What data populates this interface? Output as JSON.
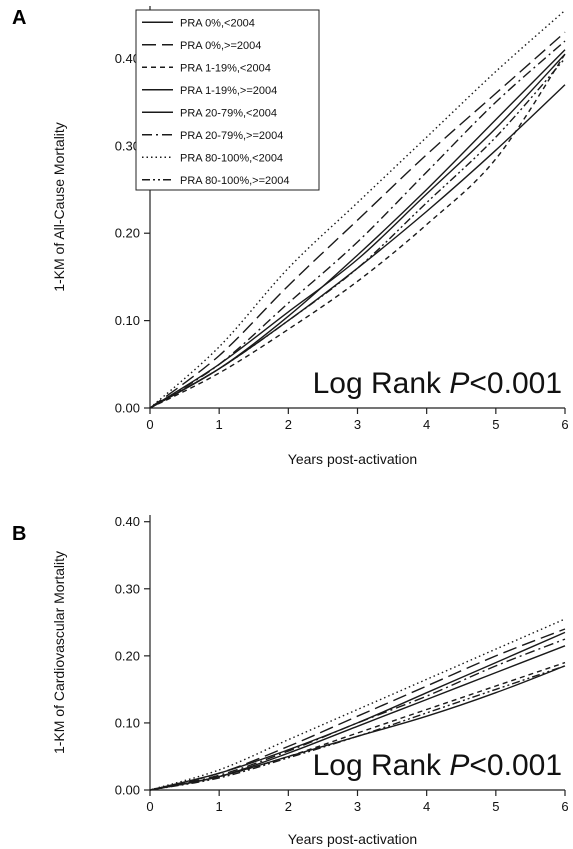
{
  "chart_data": [
    {
      "type": "line",
      "panel_label": "A",
      "title": "",
      "xlabel": "Years post-activation",
      "ylabel": "1-KM of All-Cause Mortality",
      "xlim": [
        0,
        6
      ],
      "ylim": [
        0,
        0.46
      ],
      "xticks": [
        "0",
        "1",
        "2",
        "3",
        "4",
        "5",
        "6"
      ],
      "yticks": [
        "0.00",
        "0.10",
        "0.20",
        "0.30",
        "0.40"
      ],
      "annotation": {
        "prefix": "Log Rank ",
        "italic": "P",
        "suffix": "<0.001"
      },
      "legend_position": "top-left",
      "series": [
        {
          "name": "PRA 0%,<2004",
          "dash": "solid",
          "x": [
            0,
            1,
            2,
            3,
            4,
            5,
            6
          ],
          "y": [
            0,
            0.045,
            0.1,
            0.16,
            0.225,
            0.295,
            0.37
          ]
        },
        {
          "name": "PRA 0%,>=2004",
          "dash": "longdash",
          "x": [
            0,
            1,
            2,
            3,
            4,
            5,
            6
          ],
          "y": [
            0,
            0.06,
            0.14,
            0.215,
            0.29,
            0.36,
            0.43
          ]
        },
        {
          "name": "PRA 1-19%,<2004",
          "dash": "shortdash",
          "x": [
            0,
            1,
            2,
            3,
            4,
            5,
            6
          ],
          "y": [
            0,
            0.04,
            0.09,
            0.145,
            0.21,
            0.285,
            0.405
          ]
        },
        {
          "name": "PRA 1-19%,>=2004",
          "dash": "solid",
          "x": [
            0,
            1,
            2,
            3,
            4,
            5,
            6
          ],
          "y": [
            0,
            0.05,
            0.11,
            0.17,
            0.245,
            0.32,
            0.405
          ]
        },
        {
          "name": "PRA 20-79%,<2004",
          "dash": "solid",
          "x": [
            0,
            1,
            2,
            3,
            4,
            5,
            6
          ],
          "y": [
            0,
            0.045,
            0.105,
            0.175,
            0.25,
            0.33,
            0.41
          ]
        },
        {
          "name": "PRA 20-79%,>=2004",
          "dash": "dashdot",
          "x": [
            0,
            1,
            2,
            3,
            4,
            5,
            6
          ],
          "y": [
            0,
            0.05,
            0.12,
            0.19,
            0.27,
            0.35,
            0.42
          ]
        },
        {
          "name": "PRA 80-100%,<2004",
          "dash": "dotted",
          "x": [
            0,
            1,
            2,
            3,
            4,
            5,
            6
          ],
          "y": [
            0,
            0.07,
            0.16,
            0.235,
            0.31,
            0.385,
            0.455
          ]
        },
        {
          "name": "PRA 80-100%,>=2004",
          "dash": "dashdotdot",
          "x": [
            0,
            1,
            2,
            3,
            4,
            5,
            6
          ],
          "y": [
            0,
            0.045,
            0.1,
            0.16,
            0.235,
            0.31,
            0.4
          ]
        }
      ]
    },
    {
      "type": "line",
      "panel_label": "B",
      "title": "",
      "xlabel": "Years post-activation",
      "ylabel": "1-KM of Cardiovascular Mortality",
      "xlim": [
        0,
        6
      ],
      "ylim": [
        0,
        0.41
      ],
      "xticks": [
        "0",
        "1",
        "2",
        "3",
        "4",
        "5",
        "6"
      ],
      "yticks": [
        "0.00",
        "0.10",
        "0.20",
        "0.30",
        "0.40"
      ],
      "annotation": {
        "prefix": "Log Rank ",
        "italic": "P",
        "suffix": "<0.001"
      },
      "series": [
        {
          "name": "PRA 0%,<2004",
          "dash": "solid",
          "x": [
            0,
            1,
            2,
            3,
            4,
            5,
            6
          ],
          "y": [
            0,
            0.02,
            0.05,
            0.08,
            0.11,
            0.145,
            0.185
          ]
        },
        {
          "name": "PRA 0%,>=2004",
          "dash": "longdash",
          "x": [
            0,
            1,
            2,
            3,
            4,
            5,
            6
          ],
          "y": [
            0,
            0.025,
            0.065,
            0.11,
            0.155,
            0.2,
            0.24
          ]
        },
        {
          "name": "PRA 1-19%,<2004",
          "dash": "shortdash",
          "x": [
            0,
            1,
            2,
            3,
            4,
            5,
            6
          ],
          "y": [
            0,
            0.02,
            0.05,
            0.085,
            0.12,
            0.155,
            0.19
          ]
        },
        {
          "name": "PRA 1-19%,>=2004",
          "dash": "solid",
          "x": [
            0,
            1,
            2,
            3,
            4,
            5,
            6
          ],
          "y": [
            0,
            0.02,
            0.055,
            0.095,
            0.135,
            0.175,
            0.215
          ]
        },
        {
          "name": "PRA 20-79%,<2004",
          "dash": "solid",
          "x": [
            0,
            1,
            2,
            3,
            4,
            5,
            6
          ],
          "y": [
            0,
            0.025,
            0.06,
            0.1,
            0.145,
            0.19,
            0.235
          ]
        },
        {
          "name": "PRA 20-79%,>=2004",
          "dash": "dashdot",
          "x": [
            0,
            1,
            2,
            3,
            4,
            5,
            6
          ],
          "y": [
            0,
            0.022,
            0.058,
            0.1,
            0.14,
            0.185,
            0.225
          ]
        },
        {
          "name": "PRA 80-100%,<2004",
          "dash": "dotted",
          "x": [
            0,
            1,
            2,
            3,
            4,
            5,
            6
          ],
          "y": [
            0,
            0.03,
            0.075,
            0.12,
            0.165,
            0.21,
            0.255
          ]
        },
        {
          "name": "PRA 80-100%,>=2004",
          "dash": "dashdotdot",
          "x": [
            0,
            1,
            2,
            3,
            4,
            5,
            6
          ],
          "y": [
            0,
            0.018,
            0.048,
            0.08,
            0.115,
            0.15,
            0.185
          ]
        }
      ]
    }
  ]
}
